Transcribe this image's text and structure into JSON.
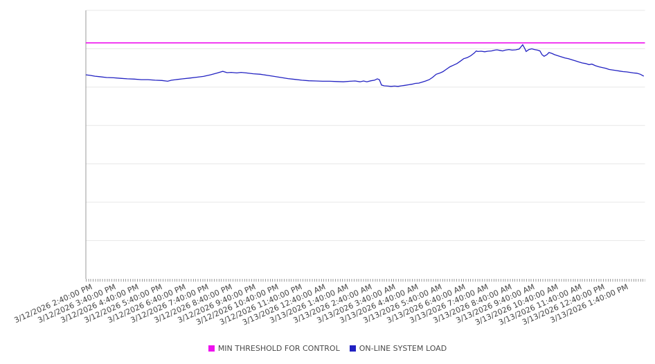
{
  "chart_data": {
    "type": "line",
    "title": "",
    "xlabel": "",
    "ylabel": "",
    "x_axis": {
      "span_hours": 24,
      "minor_ticks_per_hour": 10,
      "label_rotation_deg": -24,
      "tick_labels": [
        "3/12/2026 2:40:00 PM",
        "3/12/2026 3:40:00 PM",
        "3/12/2026 4:40:00 PM",
        "3/12/2026 5:40:00 PM",
        "3/12/2026 6:40:00 PM",
        "3/12/2026 7:40:00 PM",
        "3/12/2026 8:40:00 PM",
        "3/12/2026 9:40:00 PM",
        "3/12/2026 10:40:00 PM",
        "3/12/2026 11:40:00 PM",
        "3/13/2026 12:40:00 AM",
        "3/13/2026 1:40:00 AM",
        "3/13/2026 2:40:00 AM",
        "3/13/2026 3:40:00 AM",
        "3/13/2026 4:40:00 AM",
        "3/13/2026 5:40:00 AM",
        "3/13/2026 6:40:00 AM",
        "3/13/2026 7:40:00 AM",
        "3/13/2026 8:40:00 AM",
        "3/13/2026 9:40:00 AM",
        "3/13/2026 10:40:00 AM",
        "3/13/2026 11:40:00 AM",
        "3/13/2026 12:40:00 PM",
        "3/13/2026 1:40:00 PM"
      ]
    },
    "y_axis": {
      "ylim": [
        0,
        100
      ],
      "gridline_divisions": 7,
      "labels_visible": false
    },
    "grid": "horizontal",
    "legend_position": "bottom-center",
    "series": [
      {
        "name": "MIN THRESHOLD FOR CONTROL",
        "type": "threshold",
        "color": "#ee11ee",
        "value": 87.9
      },
      {
        "name": "ON-LINE SYSTEM LOAD",
        "type": "line",
        "color": "#2121c2",
        "points": [
          [
            0,
            76.0
          ],
          [
            0.18,
            75.8
          ],
          [
            0.39,
            75.5
          ],
          [
            0.59,
            75.3
          ],
          [
            0.89,
            75.0
          ],
          [
            1.19,
            74.9
          ],
          [
            1.49,
            74.7
          ],
          [
            1.78,
            74.5
          ],
          [
            2.08,
            74.4
          ],
          [
            2.38,
            74.2
          ],
          [
            2.67,
            74.2
          ],
          [
            2.97,
            74.0
          ],
          [
            3.27,
            73.9
          ],
          [
            3.51,
            73.6
          ],
          [
            3.68,
            74.0
          ],
          [
            3.86,
            74.2
          ],
          [
            4.16,
            74.5
          ],
          [
            4.46,
            74.8
          ],
          [
            4.75,
            75.1
          ],
          [
            5.05,
            75.4
          ],
          [
            5.35,
            76.0
          ],
          [
            5.65,
            76.7
          ],
          [
            5.88,
            77.3
          ],
          [
            6.06,
            76.8
          ],
          [
            6.24,
            76.9
          ],
          [
            6.48,
            76.7
          ],
          [
            6.66,
            76.9
          ],
          [
            6.89,
            76.7
          ],
          [
            7.19,
            76.4
          ],
          [
            7.49,
            76.2
          ],
          [
            7.79,
            75.8
          ],
          [
            8.08,
            75.4
          ],
          [
            8.38,
            75.0
          ],
          [
            8.68,
            74.6
          ],
          [
            8.97,
            74.3
          ],
          [
            9.27,
            74.0
          ],
          [
            9.57,
            73.8
          ],
          [
            9.87,
            73.7
          ],
          [
            10.16,
            73.6
          ],
          [
            10.46,
            73.6
          ],
          [
            10.76,
            73.5
          ],
          [
            11.05,
            73.4
          ],
          [
            11.35,
            73.6
          ],
          [
            11.56,
            73.7
          ],
          [
            11.77,
            73.4
          ],
          [
            11.92,
            73.7
          ],
          [
            12.06,
            73.4
          ],
          [
            12.24,
            73.8
          ],
          [
            12.39,
            74.0
          ],
          [
            12.51,
            74.5
          ],
          [
            12.6,
            74.2
          ],
          [
            12.69,
            72.2
          ],
          [
            12.81,
            71.9
          ],
          [
            12.96,
            71.8
          ],
          [
            13.1,
            71.7
          ],
          [
            13.25,
            71.8
          ],
          [
            13.4,
            71.7
          ],
          [
            13.55,
            71.9
          ],
          [
            13.7,
            72.1
          ],
          [
            13.85,
            72.3
          ],
          [
            14.0,
            72.5
          ],
          [
            14.14,
            72.8
          ],
          [
            14.29,
            72.9
          ],
          [
            14.44,
            73.3
          ],
          [
            14.59,
            73.7
          ],
          [
            14.74,
            74.2
          ],
          [
            14.89,
            75.1
          ],
          [
            15.04,
            76.2
          ],
          [
            15.18,
            76.6
          ],
          [
            15.33,
            77.2
          ],
          [
            15.48,
            78.1
          ],
          [
            15.63,
            79.0
          ],
          [
            15.78,
            79.6
          ],
          [
            15.93,
            80.2
          ],
          [
            16.08,
            81.1
          ],
          [
            16.22,
            82.0
          ],
          [
            16.37,
            82.4
          ],
          [
            16.52,
            83.1
          ],
          [
            16.67,
            84.1
          ],
          [
            16.76,
            84.9
          ],
          [
            16.82,
            84.7
          ],
          [
            16.97,
            84.8
          ],
          [
            17.12,
            84.6
          ],
          [
            17.26,
            84.8
          ],
          [
            17.41,
            84.9
          ],
          [
            17.56,
            85.2
          ],
          [
            17.65,
            85.3
          ],
          [
            17.77,
            85.1
          ],
          [
            17.89,
            84.9
          ],
          [
            18.01,
            85.2
          ],
          [
            18.16,
            85.4
          ],
          [
            18.3,
            85.2
          ],
          [
            18.45,
            85.3
          ],
          [
            18.6,
            85.6
          ],
          [
            18.75,
            87.2
          ],
          [
            18.84,
            85.8
          ],
          [
            18.9,
            84.7
          ],
          [
            19.02,
            85.4
          ],
          [
            19.14,
            85.7
          ],
          [
            19.26,
            85.4
          ],
          [
            19.38,
            85.2
          ],
          [
            19.49,
            84.9
          ],
          [
            19.58,
            83.5
          ],
          [
            19.67,
            82.9
          ],
          [
            19.79,
            83.5
          ],
          [
            19.88,
            84.3
          ],
          [
            20.0,
            84.0
          ],
          [
            20.12,
            83.5
          ],
          [
            20.27,
            83.1
          ],
          [
            20.41,
            82.7
          ],
          [
            20.56,
            82.3
          ],
          [
            20.71,
            82.0
          ],
          [
            20.86,
            81.6
          ],
          [
            21.01,
            81.2
          ],
          [
            21.16,
            80.8
          ],
          [
            21.31,
            80.4
          ],
          [
            21.45,
            80.2
          ],
          [
            21.6,
            79.8
          ],
          [
            21.72,
            80.0
          ],
          [
            21.87,
            79.4
          ],
          [
            22.02,
            79.0
          ],
          [
            22.17,
            78.7
          ],
          [
            22.32,
            78.4
          ],
          [
            22.46,
            78.0
          ],
          [
            22.61,
            77.8
          ],
          [
            22.76,
            77.6
          ],
          [
            22.91,
            77.4
          ],
          [
            23.06,
            77.2
          ],
          [
            23.21,
            77.1
          ],
          [
            23.36,
            76.9
          ],
          [
            23.5,
            76.7
          ],
          [
            23.65,
            76.6
          ],
          [
            23.8,
            76.2
          ],
          [
            23.95,
            75.5
          ]
        ]
      }
    ]
  },
  "legend": {
    "items": [
      {
        "label": "MIN THRESHOLD FOR CONTROL",
        "color": "#ee11ee"
      },
      {
        "label": "ON-LINE SYSTEM LOAD",
        "color": "#2121c2"
      }
    ]
  },
  "colors": {
    "background": "#ffffff",
    "gridline": "#e7e7e7",
    "axis_line": "#999999",
    "tick": "#999999",
    "label_text": "#424242",
    "legend_text": "#4a4a4a"
  }
}
